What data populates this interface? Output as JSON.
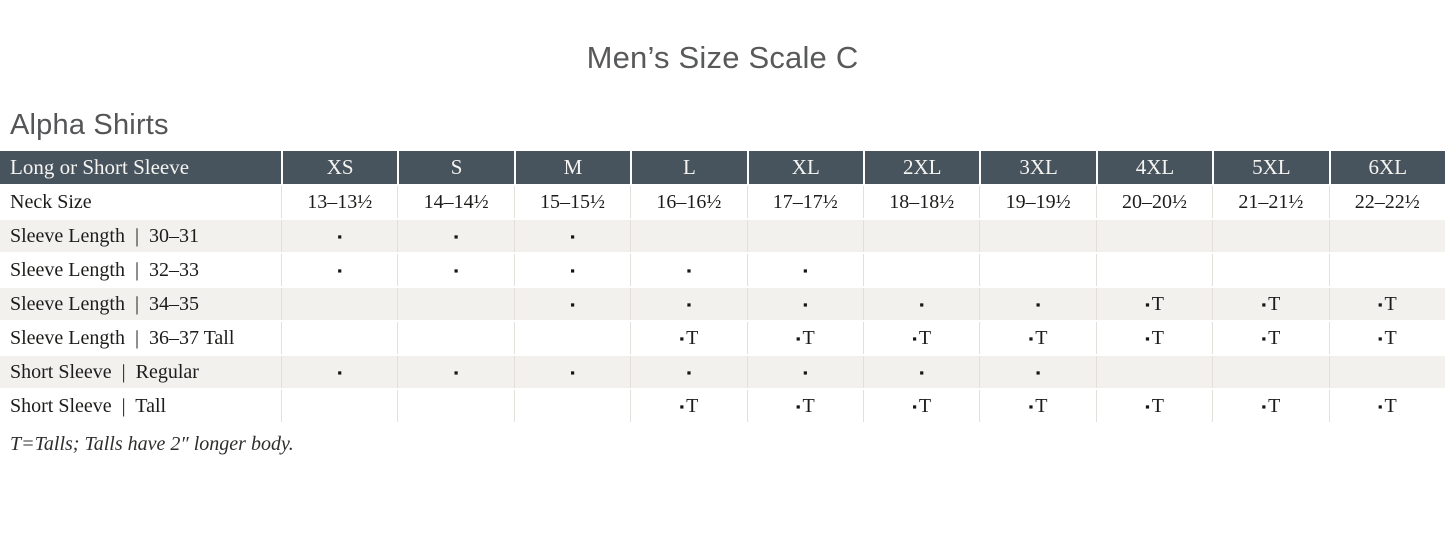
{
  "page": {
    "title": "Men’s Size Scale C",
    "section_heading": "Alpha Shirts",
    "footnote": "T=Talls; Talls have 2″ longer body."
  },
  "colors": {
    "header_bg": "#47535d",
    "header_text": "#f5f4f1",
    "body_text": "#1c1c1a",
    "stripe_bg": "#f3f1ee",
    "heading_text": "#58595b",
    "cell_border": "#e3e0db"
  },
  "legend": {
    "dot_glyph": "▪",
    "tall_glyph": "▪T"
  },
  "table": {
    "columns": [
      "Long or Short Sleeve",
      "XS",
      "S",
      "M",
      "L",
      "XL",
      "2XL",
      "3XL",
      "4XL",
      "5XL",
      "6XL"
    ],
    "rows": [
      {
        "label": "Neck Size",
        "striped": false,
        "cells": [
          "13–13½",
          "14–14½",
          "15–15½",
          "16–16½",
          "17–17½",
          "18–18½",
          "19–19½",
          "20–20½",
          "21–21½",
          "22–22½"
        ]
      },
      {
        "label": "Sleeve Length  |  30–31",
        "striped": true,
        "cells": [
          "▪",
          "▪",
          "▪",
          "",
          "",
          "",
          "",
          "",
          "",
          ""
        ]
      },
      {
        "label": "Sleeve Length  |  32–33",
        "striped": false,
        "cells": [
          "▪",
          "▪",
          "▪",
          "▪",
          "▪",
          "",
          "",
          "",
          "",
          ""
        ]
      },
      {
        "label": "Sleeve Length  |  34–35",
        "striped": true,
        "cells": [
          "",
          "",
          "▪",
          "▪",
          "▪",
          "▪",
          "▪",
          "▪T",
          "▪T",
          "▪T"
        ]
      },
      {
        "label": "Sleeve Length  |  36–37 Tall",
        "striped": false,
        "cells": [
          "",
          "",
          "",
          "▪T",
          "▪T",
          "▪T",
          "▪T",
          "▪T",
          "▪T",
          "▪T"
        ]
      },
      {
        "label": "Short Sleeve  |  Regular",
        "striped": true,
        "cells": [
          "▪",
          "▪",
          "▪",
          "▪",
          "▪",
          "▪",
          "▪",
          "",
          "",
          ""
        ]
      },
      {
        "label": "Short Sleeve  |  Tall",
        "striped": false,
        "cells": [
          "",
          "",
          "",
          "▪T",
          "▪T",
          "▪T",
          "▪T",
          "▪T",
          "▪T",
          "▪T"
        ]
      }
    ]
  }
}
